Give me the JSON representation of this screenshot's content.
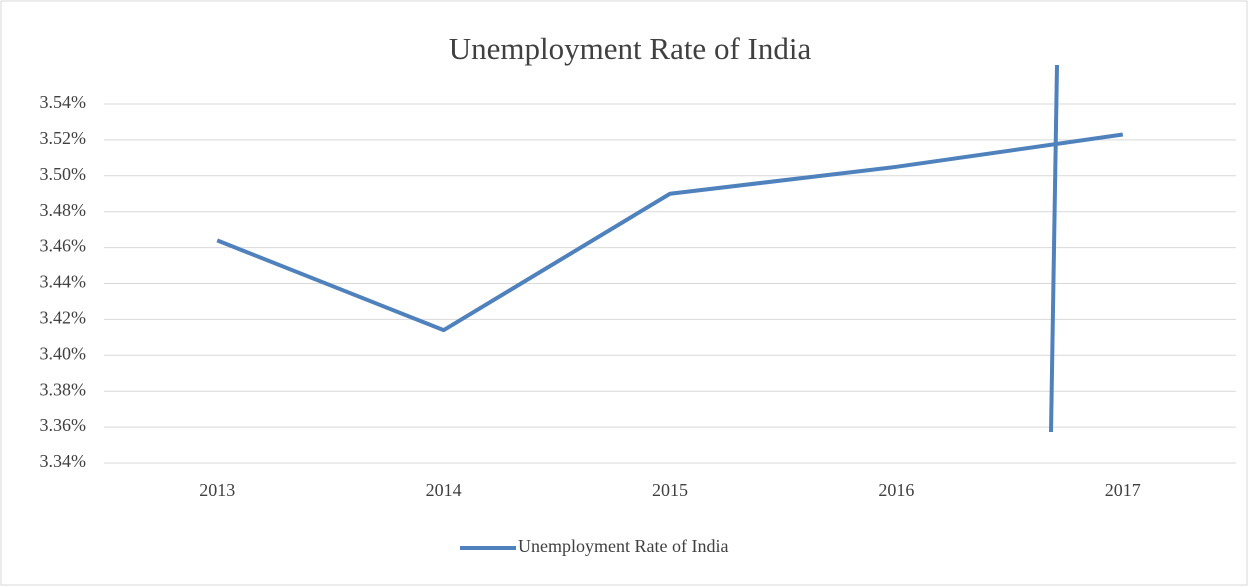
{
  "chart_data": {
    "type": "line",
    "title": "Unemployment Rate of India",
    "categories": [
      "2013",
      "2014",
      "2015",
      "2016",
      "2017"
    ],
    "series": [
      {
        "name": "Unemployment Rate of India",
        "color": "#4f81bd",
        "values": [
          3.464,
          3.414,
          3.49,
          3.505,
          3.523
        ]
      }
    ],
    "ylim": [
      3.34,
      3.54
    ],
    "yticks": [
      {
        "value": 3.34,
        "label": "3.34%"
      },
      {
        "value": 3.36,
        "label": "3.36%"
      },
      {
        "value": 3.38,
        "label": "3.38%"
      },
      {
        "value": 3.4,
        "label": "3.40%"
      },
      {
        "value": 3.42,
        "label": "3.42%"
      },
      {
        "value": 3.44,
        "label": "3.44%"
      },
      {
        "value": 3.46,
        "label": "3.46%"
      },
      {
        "value": 3.48,
        "label": "3.48%"
      },
      {
        "value": 3.5,
        "label": "3.50%"
      },
      {
        "value": 3.52,
        "label": "3.52%"
      },
      {
        "value": 3.54,
        "label": "3.54%"
      }
    ],
    "grid": true,
    "legend": "bottom"
  }
}
